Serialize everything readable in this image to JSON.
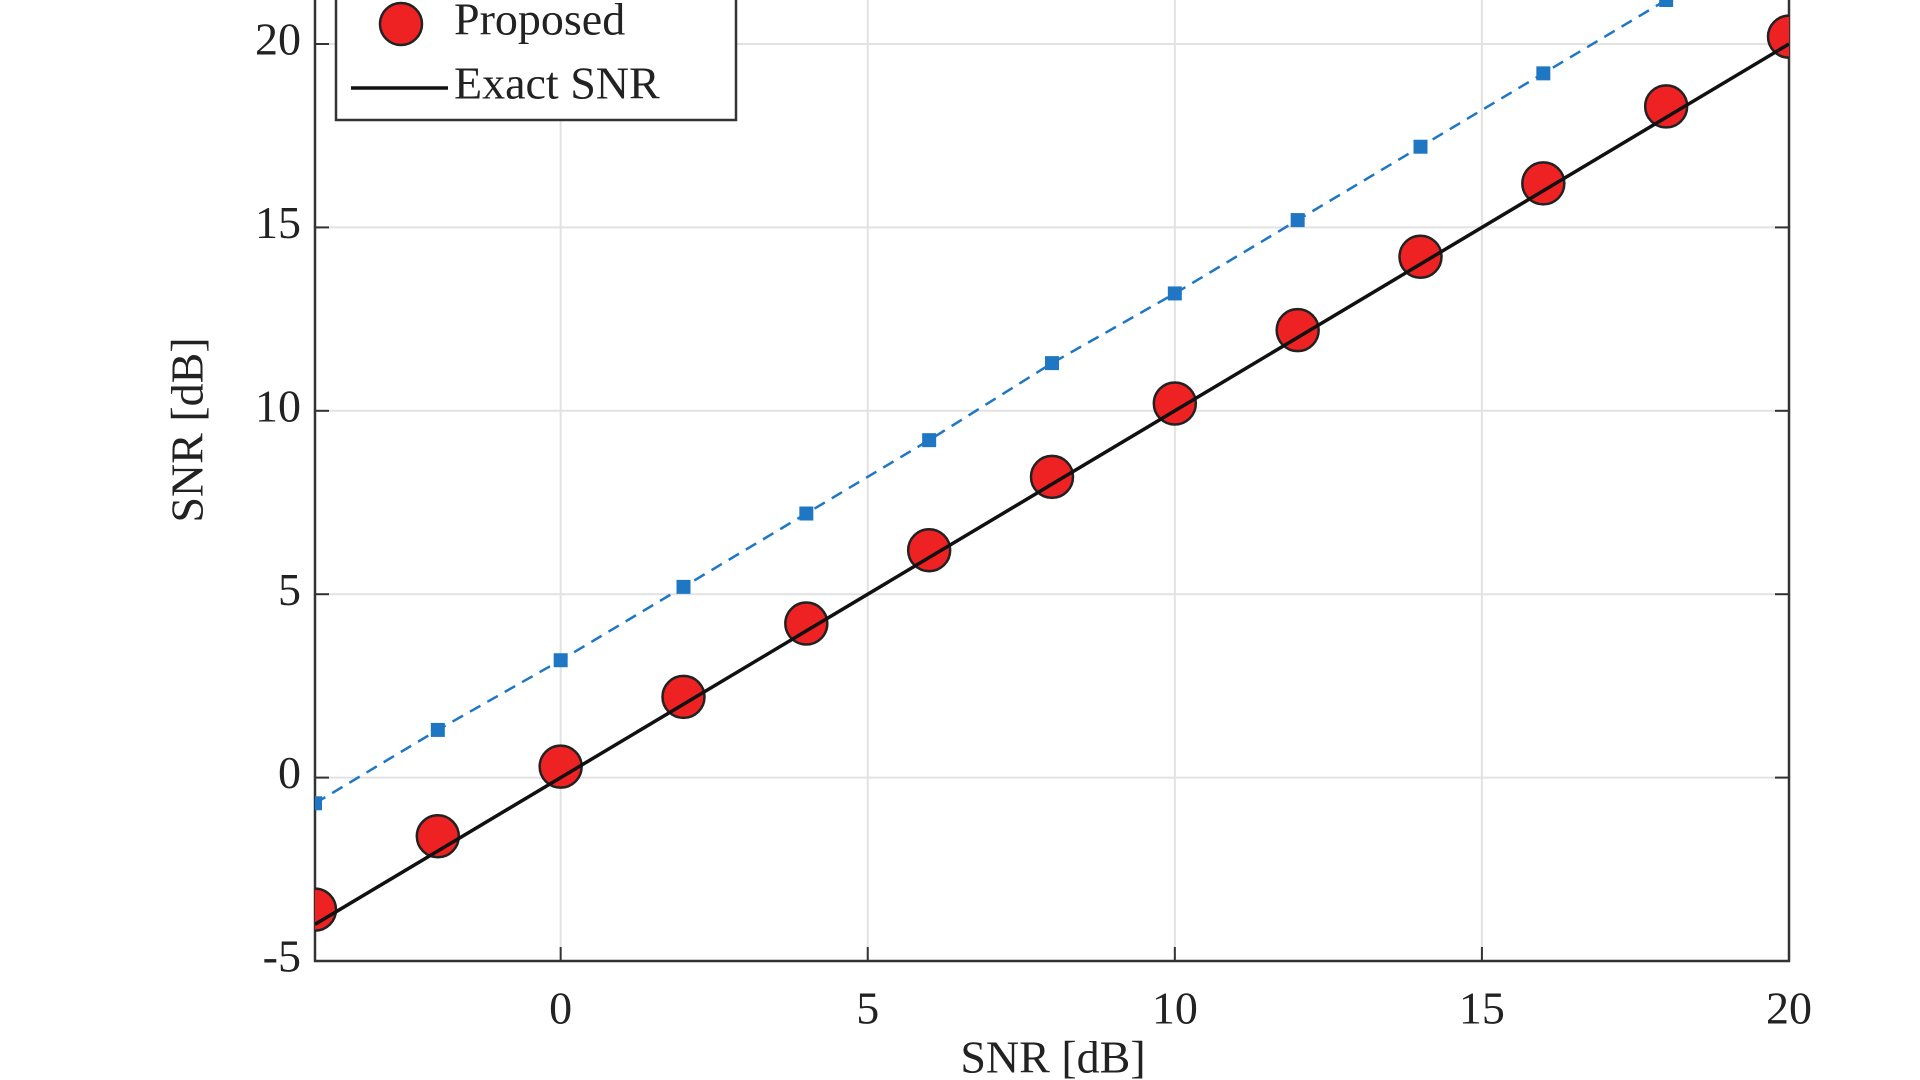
{
  "chart_data": {
    "type": "line",
    "x_label": "SNR [dB]",
    "y_label": "SNR [dB]",
    "x": [
      -4,
      -2,
      0,
      2,
      4,
      6,
      8,
      10,
      12,
      14,
      16,
      18,
      20
    ],
    "series": [
      {
        "color": "#1f77c4",
        "style": "dashed-square",
        "values": [
          -0.7,
          1.3,
          3.2,
          5.2,
          7.2,
          9.2,
          11.3,
          13.2,
          15.2,
          17.2,
          19.2,
          21.2,
          null
        ]
      },
      {
        "name": "Proposed",
        "color": "#ee2222",
        "style": "circle",
        "values": [
          -3.6,
          -1.6,
          0.3,
          2.2,
          4.2,
          6.2,
          8.2,
          10.2,
          12.2,
          14.2,
          16.2,
          18.3,
          20.2
        ]
      },
      {
        "name": "Exact SNR",
        "color": "#111111",
        "style": "solid",
        "values": [
          -4,
          -2,
          0,
          2,
          4,
          6,
          8,
          10,
          12,
          14,
          16,
          18,
          20
        ]
      }
    ],
    "xlim": [
      -4,
      20
    ],
    "xticks": [
      0,
      5,
      10,
      15,
      20
    ],
    "ylim": [
      -5,
      21.2
    ],
    "yticks": [
      -5,
      0,
      5,
      10,
      15,
      20
    ],
    "grid": true,
    "legend": "upper-left"
  }
}
